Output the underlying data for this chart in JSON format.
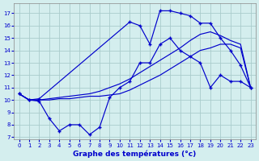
{
  "xlabel": "Graphe des températures (°c)",
  "background_color": "#d4eeee",
  "grid_color": "#aacccc",
  "line_color": "#0000cc",
  "x_ticks": [
    0,
    1,
    2,
    3,
    4,
    5,
    6,
    7,
    8,
    9,
    10,
    11,
    12,
    13,
    14,
    15,
    16,
    17,
    18,
    19,
    20,
    21,
    22,
    23
  ],
  "y_ticks": [
    7,
    8,
    9,
    10,
    11,
    12,
    13,
    14,
    15,
    16,
    17
  ],
  "xlim": [
    -0.5,
    23.5
  ],
  "ylim": [
    6.8,
    17.8
  ],
  "line_top_x": [
    0,
    1,
    2,
    11,
    12,
    13,
    14,
    15,
    16,
    17,
    18,
    19,
    20,
    21,
    22,
    23
  ],
  "line_top_y": [
    10.5,
    10.0,
    10.1,
    16.3,
    16.0,
    14.5,
    17.2,
    17.2,
    17.0,
    16.8,
    16.2,
    16.2,
    15.0,
    14.0,
    12.8,
    11.0
  ],
  "line_mid1_x": [
    0,
    1,
    2,
    3,
    4,
    5,
    6,
    7,
    8,
    9,
    10,
    11,
    12,
    13,
    14,
    15,
    16,
    17,
    18,
    19,
    20,
    21,
    22,
    23
  ],
  "line_mid1_y": [
    10.5,
    10.0,
    10.0,
    10.1,
    10.2,
    10.3,
    10.4,
    10.5,
    10.7,
    11.0,
    11.3,
    11.7,
    12.2,
    12.7,
    13.2,
    13.7,
    14.2,
    14.8,
    15.3,
    15.5,
    15.2,
    14.8,
    14.5,
    11.0
  ],
  "line_mid2_x": [
    0,
    1,
    2,
    3,
    4,
    5,
    6,
    7,
    8,
    9,
    10,
    11,
    12,
    13,
    14,
    15,
    16,
    17,
    18,
    19,
    20,
    21,
    22,
    23
  ],
  "line_mid2_y": [
    10.5,
    10.0,
    10.0,
    10.0,
    10.1,
    10.1,
    10.2,
    10.3,
    10.3,
    10.4,
    10.5,
    10.8,
    11.2,
    11.6,
    12.0,
    12.5,
    13.0,
    13.5,
    14.0,
    14.2,
    14.5,
    14.5,
    14.2,
    11.0
  ],
  "line_bot_x": [
    0,
    1,
    2,
    3,
    4,
    5,
    6,
    7,
    8,
    9,
    10,
    11,
    12,
    13,
    14,
    15,
    16,
    17,
    18,
    19,
    20,
    21,
    22,
    23
  ],
  "line_bot_y": [
    10.5,
    10.0,
    9.9,
    8.5,
    7.5,
    8.0,
    8.0,
    7.2,
    7.8,
    10.2,
    11.0,
    11.5,
    13.0,
    13.0,
    14.5,
    15.0,
    14.0,
    13.5,
    13.0,
    11.0,
    12.0,
    11.5,
    11.5,
    11.0
  ]
}
